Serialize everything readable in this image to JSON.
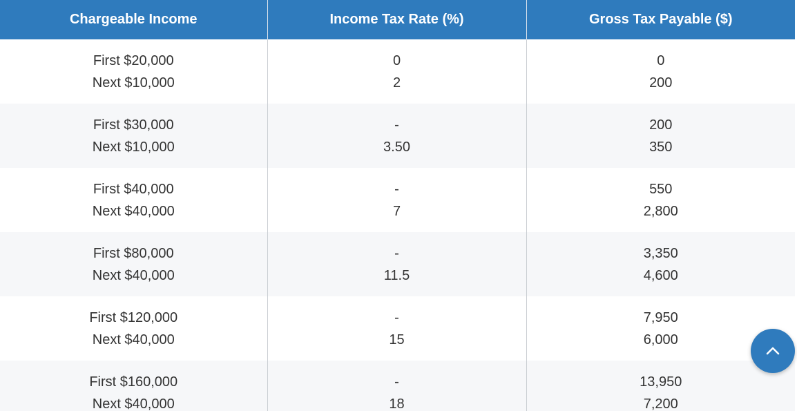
{
  "table": {
    "headers": [
      "Chargeable Income",
      "Income Tax Rate (%)",
      "Gross Tax Payable ($)"
    ],
    "rows": [
      {
        "income": [
          "First $20,000",
          "Next $10,000"
        ],
        "rate": [
          "0",
          "2"
        ],
        "tax": [
          "0",
          "200"
        ]
      },
      {
        "income": [
          "First $30,000",
          "Next $10,000"
        ],
        "rate": [
          "-",
          "3.50"
        ],
        "tax": [
          "200",
          "350"
        ]
      },
      {
        "income": [
          "First $40,000",
          "Next $40,000"
        ],
        "rate": [
          "-",
          "7"
        ],
        "tax": [
          "550",
          "2,800"
        ]
      },
      {
        "income": [
          "First $80,000",
          "Next $40,000"
        ],
        "rate": [
          "-",
          "11.5"
        ],
        "tax": [
          "3,350",
          "4,600"
        ]
      },
      {
        "income": [
          "First $120,000",
          "Next $40,000"
        ],
        "rate": [
          "-",
          "15"
        ],
        "tax": [
          "7,950",
          "6,000"
        ]
      },
      {
        "income": [
          "First $160,000",
          "Next $40,000"
        ],
        "rate": [
          "-",
          "18"
        ],
        "tax": [
          "13,950",
          "7,200"
        ]
      }
    ]
  },
  "scroll_top": {
    "icon": "chevron-up-icon",
    "color": "#2f7bbd"
  },
  "colors": {
    "header_bg": "#2f7bbd",
    "header_text": "#ffffff",
    "stripe": "#f6f7f9",
    "body_text": "#333333"
  }
}
